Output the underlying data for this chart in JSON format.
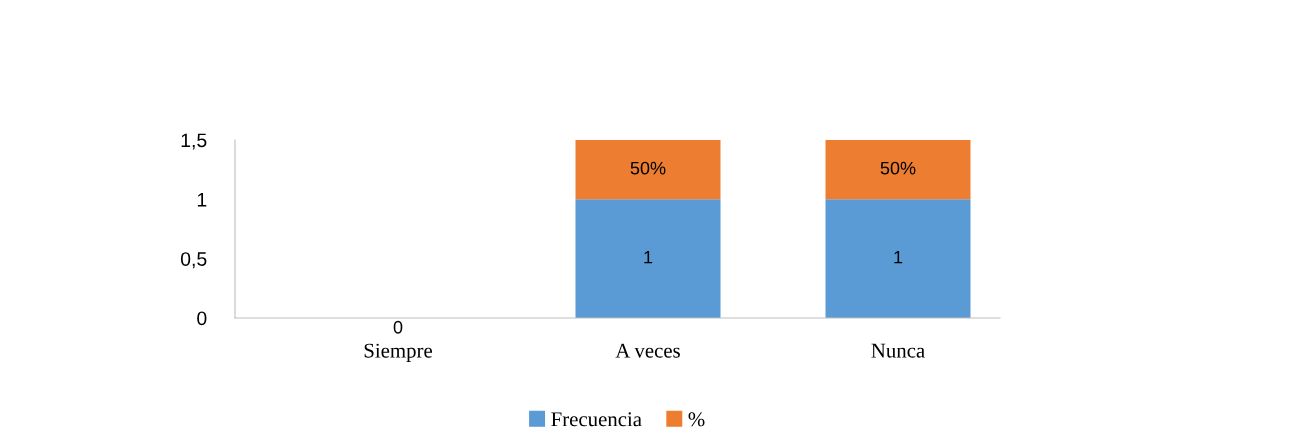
{
  "chart_data": {
    "type": "bar",
    "stacked": true,
    "categories": [
      "Siempre",
      "A veces",
      "Nunca"
    ],
    "series": [
      {
        "name": "Frecuencia",
        "color": "#5b9bd5",
        "values": [
          0,
          1,
          1
        ],
        "value_labels": [
          "0",
          "1",
          "1"
        ]
      },
      {
        "name": "%",
        "color": "#ed7d31",
        "values": [
          0,
          0.5,
          0.5
        ],
        "value_labels": [
          null,
          "50%",
          "50%"
        ]
      }
    ],
    "ylim": [
      0,
      1.5
    ],
    "yticks": [
      {
        "value": 0,
        "label": "0"
      },
      {
        "value": 0.5,
        "label": "0,5"
      },
      {
        "value": 1,
        "label": "1"
      },
      {
        "value": 1.5,
        "label": "1,5"
      }
    ],
    "grid": false,
    "legend": "bottom"
  }
}
